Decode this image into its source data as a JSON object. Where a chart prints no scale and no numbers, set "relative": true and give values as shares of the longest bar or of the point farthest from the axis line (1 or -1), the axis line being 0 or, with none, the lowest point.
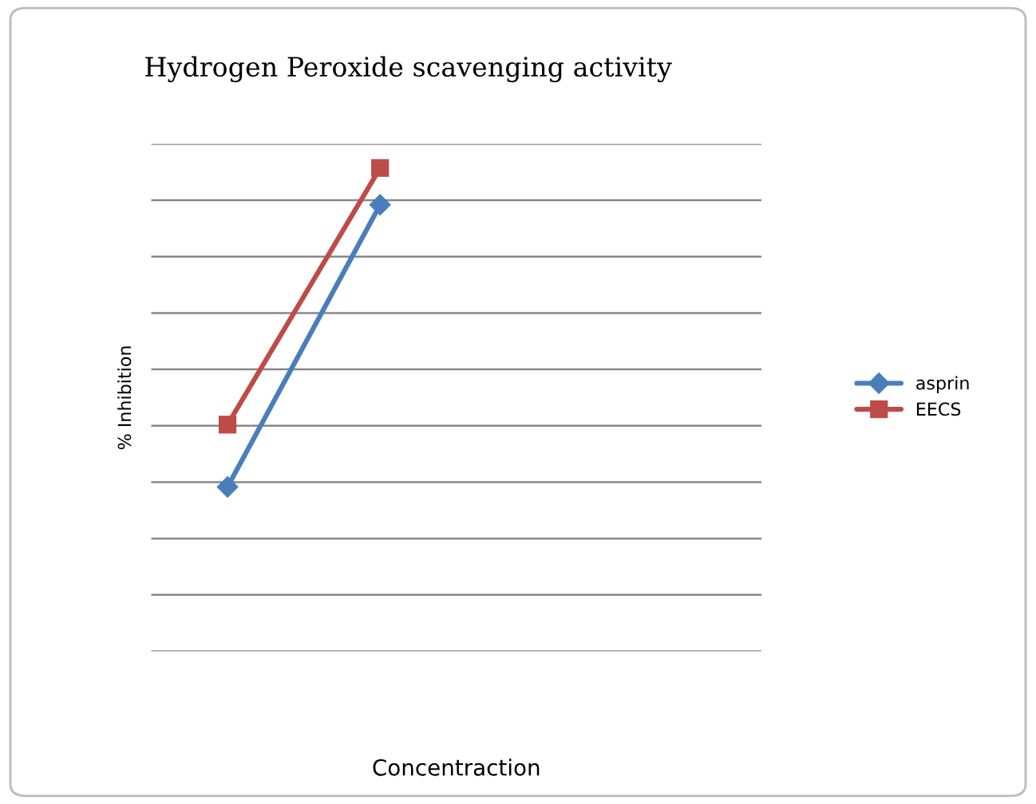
{
  "chart_data": {
    "type": "line",
    "title": "Hydrogen Peroxide scavenging activity",
    "xlabel": "Concentraction",
    "ylabel": "% Inhibition",
    "relative": true,
    "categories": [
      null,
      null,
      null,
      null
    ],
    "grid": "y",
    "legend": "right",
    "series": [
      {
        "name": "asprin",
        "color": "#4a7ebb",
        "marker": "diamond",
        "values": [
          0.34,
          0.924,
          null,
          null
        ]
      },
      {
        "name": "EECS",
        "color": "#be4b48",
        "marker": "square",
        "values": [
          0.469,
          1.0,
          null,
          null
        ]
      }
    ]
  }
}
